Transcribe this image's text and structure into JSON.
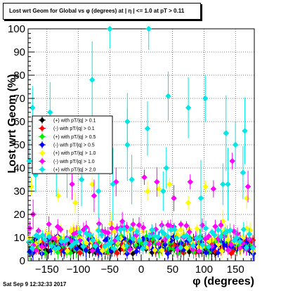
{
  "title": "Lost wrt Geom for Global vs φ (degrees) at | η | <= 1.0 at pT > 0.11",
  "footer": "Sat Sep  9 12:32:33 2017",
  "chart_data": {
    "type": "scatter",
    "xlabel": "φ (degrees)",
    "ylabel": "Lost wrt Geom (%)",
    "xlim": [
      -180,
      180
    ],
    "ylim": [
      0,
      100
    ],
    "x_ticks": [
      -150,
      -100,
      -50,
      0,
      50,
      100,
      150
    ],
    "x_tick_labels": [
      "−150",
      "−100",
      "−50",
      "0",
      "50",
      "100",
      "150"
    ],
    "y_ticks": [
      0,
      10,
      20,
      30,
      40,
      50,
      60,
      70,
      80,
      90,
      100
    ],
    "y_tick_labels": [
      "0",
      "10",
      "20",
      "30",
      "40",
      "50",
      "60",
      "70",
      "80",
      "90",
      "100"
    ],
    "grid": true,
    "legend_position": "center-left",
    "series": [
      {
        "name": "(+) with pT/|q| > 0.1",
        "color": "#000000",
        "low": [
          3,
          9
        ],
        "high": [],
        "err": 1.5
      },
      {
        "name": "(-) with pT/|q| > 0.1",
        "color": "#ff0000",
        "low": [
          3,
          9
        ],
        "high": [],
        "err": 1.5
      },
      {
        "name": "(+) with pT/|q| > 0.5",
        "color": "#00ee00",
        "low": [
          3,
          11
        ],
        "high": [],
        "err": 2
      },
      {
        "name": "(-) with pT/|q| > 0.5",
        "color": "#0000ff",
        "low": [
          3,
          11
        ],
        "high": [],
        "err": 2
      },
      {
        "name": "(+) with pT/|q| > 1.0",
        "color": "#ffff00",
        "low": [
          4,
          14
        ],
        "high": [
          [
            -175,
            32
          ],
          [
            -132,
            28
          ],
          [
            -105,
            25
          ],
          [
            -78,
            33
          ],
          [
            -48,
            16
          ],
          [
            10,
            30
          ],
          [
            28,
            31
          ],
          [
            45,
            33
          ],
          [
            75,
            25
          ],
          [
            102,
            32
          ],
          [
            130,
            17
          ],
          [
            168,
            27
          ]
        ],
        "err": 4
      },
      {
        "name": "(-) with pT/|q| > 1.0",
        "color": "#ff00ff",
        "low": [
          4,
          16
        ],
        "high": [
          [
            -172,
            20
          ],
          [
            -110,
            33
          ],
          [
            -75,
            28
          ],
          [
            -40,
            34
          ],
          [
            -30,
            17
          ],
          [
            5,
            36
          ],
          [
            25,
            34
          ],
          [
            52,
            27
          ],
          [
            78,
            34
          ],
          [
            115,
            31
          ],
          [
            145,
            43
          ],
          [
            170,
            32
          ]
        ],
        "err": 5
      },
      {
        "name": "(+) with pT/|q| > 2.0",
        "color": "#00e5e5",
        "low": [
          5,
          14
        ],
        "high": [
          [
            -178,
            43
          ],
          [
            -173,
            66
          ],
          [
            -168,
            37
          ],
          [
            -145,
            64
          ],
          [
            -135,
            44
          ],
          [
            -118,
            41
          ],
          [
            -95,
            35
          ],
          [
            -87,
            50
          ],
          [
            -78,
            78
          ],
          [
            -68,
            30
          ],
          [
            -50,
            100
          ],
          [
            -45,
            33
          ],
          [
            -22,
            60
          ],
          [
            -22,
            50
          ],
          [
            -15,
            35
          ],
          [
            10,
            57
          ],
          [
            12,
            100
          ],
          [
            35,
            30
          ],
          [
            40,
            40
          ],
          [
            43,
            71
          ],
          [
            75,
            66
          ],
          [
            95,
            27
          ],
          [
            102,
            70
          ],
          [
            130,
            33
          ],
          [
            135,
            55
          ],
          [
            138,
            33
          ],
          [
            150,
            50
          ],
          [
            162,
            38
          ],
          [
            165,
            56
          ]
        ],
        "err": 12
      }
    ]
  }
}
